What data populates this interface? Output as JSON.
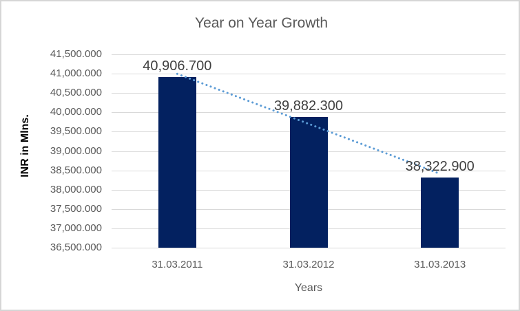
{
  "chart_data": {
    "type": "bar",
    "title": "Year on Year Growth",
    "xlabel": "Years",
    "ylabel": "INR in Mlns.",
    "categories": [
      "31.03.2011",
      "31.03.2012",
      "31.03.2013"
    ],
    "values": [
      40906.7,
      39882.3,
      38322.9
    ],
    "data_labels": [
      "40,906.700",
      "39,882.300",
      "38,322.900"
    ],
    "ylim": [
      36500,
      41500
    ],
    "ytick_step": 500,
    "ytick_labels": [
      "36,500.000",
      "37,000.000",
      "37,500.000",
      "38,000.000",
      "38,500.000",
      "39,000.000",
      "39,500.000",
      "40,000.000",
      "40,500.000",
      "41,000.000",
      "41,500.000"
    ],
    "grid": true,
    "legend": false,
    "trendline": {
      "type": "linear",
      "style": "dotted"
    },
    "colors": {
      "bar": "#032160",
      "trendline": "#5b9bd5",
      "gridline": "#d9d9d9",
      "title": "#595959",
      "tick_label": "#595959",
      "data_label": "#404040",
      "axis_title": "#000000",
      "border": "#d6d6d6",
      "background": "#ffffff"
    }
  }
}
